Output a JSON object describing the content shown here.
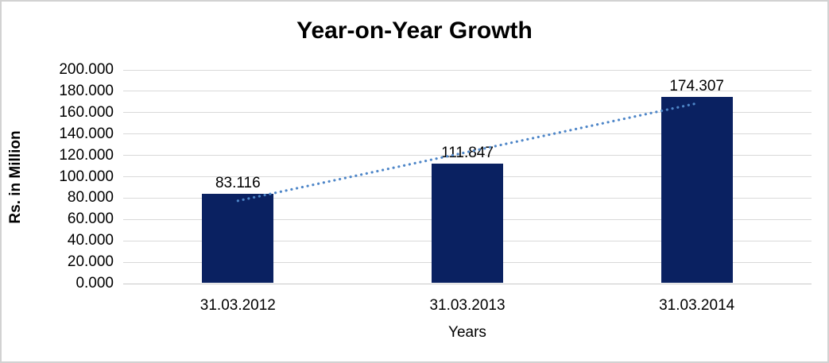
{
  "chart_data": {
    "type": "bar",
    "title": "Year-on-Year Growth",
    "xlabel": "Years",
    "ylabel": "Rs. in Million",
    "categories": [
      "31.03.2012",
      "31.03.2013",
      "31.03.2014"
    ],
    "values": [
      83.116,
      111.847,
      174.307
    ],
    "data_labels": [
      "83.116",
      "111.847",
      "174.307"
    ],
    "ylim": [
      0,
      200
    ],
    "ytick_step": 20,
    "ytick_labels": [
      "0.000",
      "20.000",
      "40.000",
      "60.000",
      "80.000",
      "100.000",
      "120.000",
      "140.000",
      "160.000",
      "180.000",
      "200.000"
    ],
    "grid": true,
    "legend": "none",
    "bar_color": "#0a2161",
    "gridline_color": "#d9d9d9",
    "trendline": {
      "type": "linear",
      "style": "dotted",
      "color": "#4e86c8",
      "fit_values_at_categories": [
        77.494,
        123.09,
        168.686
      ]
    }
  }
}
